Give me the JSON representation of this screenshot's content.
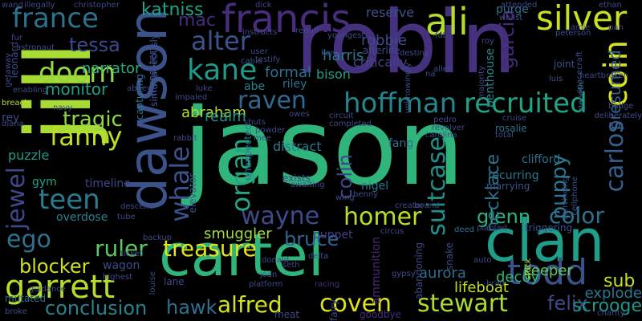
{
  "words": [
    {
      "text": "jason",
      "color": "#2fb47c"
    },
    {
      "text": "robin",
      "color": "#46317e"
    },
    {
      "text": "cartel",
      "color": "#2fb47c"
    },
    {
      "text": "jill",
      "color": "#a8db34"
    },
    {
      "text": "dawson",
      "color": "#3b528b"
    },
    {
      "text": "clan",
      "color": "#1f9e89"
    },
    {
      "text": "francis",
      "color": "#472d7b"
    },
    {
      "text": "ali",
      "color": "#b5de2b"
    },
    {
      "text": "silver",
      "color": "#c8e020"
    },
    {
      "text": "coin",
      "color": "#d8e219"
    },
    {
      "text": "carlos",
      "color": "#355f8d"
    },
    {
      "text": "recruited",
      "color": "#20a486"
    },
    {
      "text": "hoffman",
      "color": "#25858e"
    },
    {
      "text": "garrett",
      "color": "#b5de2b"
    },
    {
      "text": "todd",
      "color": "#3b528b"
    },
    {
      "text": "wayne",
      "color": "#3e4a89"
    },
    {
      "text": "homer",
      "color": "#b8de29"
    },
    {
      "text": "treasure",
      "color": "#e5e419"
    },
    {
      "text": "alfred",
      "color": "#d2e21b"
    },
    {
      "text": "stewart",
      "color": "#addc30"
    },
    {
      "text": "conclusion",
      "color": "#26828e"
    },
    {
      "text": "coven",
      "color": "#dde318"
    },
    {
      "text": "bruce",
      "color": "#31668e"
    },
    {
      "text": "hawk",
      "color": "#2c728e"
    },
    {
      "text": "raven",
      "color": "#31688e"
    },
    {
      "text": "alter",
      "color": "#3b528b"
    },
    {
      "text": "kane",
      "color": "#1f9a8a"
    },
    {
      "text": "doom",
      "color": "#95d840"
    },
    {
      "text": "france",
      "color": "#2c728e"
    },
    {
      "text": "fanny",
      "color": "#bddf26"
    },
    {
      "text": "jewel",
      "color": "#3f4889"
    },
    {
      "text": "whale",
      "color": "#3b528b"
    },
    {
      "text": "organ",
      "color": "#22a785"
    },
    {
      "text": "teen",
      "color": "#287c8e"
    },
    {
      "text": "ego",
      "color": "#2c728e"
    },
    {
      "text": "ruler",
      "color": "#5ec962"
    },
    {
      "text": "blocker",
      "color": "#d0e11c"
    },
    {
      "text": "suitcase",
      "color": "#21918c"
    },
    {
      "text": "colin",
      "color": "#3f4889"
    },
    {
      "text": "puppy",
      "color": "#2a788e"
    },
    {
      "text": "color",
      "color": "#2c728e"
    },
    {
      "text": "glenn",
      "color": "#2db27d"
    },
    {
      "text": "felix",
      "color": "#3e4a89"
    },
    {
      "text": "scrooge",
      "color": "#1f958b"
    },
    {
      "text": "sub",
      "color": "#c8e020"
    },
    {
      "text": "explode",
      "color": "#2a788e"
    },
    {
      "text": "katniss",
      "color": "#20a386"
    },
    {
      "text": "mac",
      "color": "#472c7a"
    },
    {
      "text": "garcia",
      "color": "#482979"
    },
    {
      "text": "presumed",
      "color": "#34618d"
    },
    {
      "text": "tessa",
      "color": "#3e4989"
    },
    {
      "text": "tragic",
      "color": "#8fd744"
    },
    {
      "text": "monitor",
      "color": "#1fa088"
    },
    {
      "text": "narrator",
      "color": "#29af7f"
    },
    {
      "text": "abraham",
      "color": "#b5de2b"
    },
    {
      "text": "smuggler",
      "color": "#a0da39"
    },
    {
      "text": "keeper",
      "color": "#5ec962"
    },
    {
      "text": "necklace",
      "color": "#2c728e"
    },
    {
      "text": "decoy",
      "color": "#31b57b"
    },
    {
      "text": "aurora",
      "color": "#2f6c8e"
    },
    {
      "text": "lifeboat",
      "color": "#c2df23"
    },
    {
      "text": "reserve",
      "color": "#3b528b"
    },
    {
      "text": "riley",
      "color": "#2c728e"
    },
    {
      "text": "formal",
      "color": "#2d708e"
    },
    {
      "text": "harris",
      "color": "#2a788e"
    },
    {
      "text": "critically",
      "color": "#404688"
    },
    {
      "text": "penthouse",
      "color": "#24868e"
    },
    {
      "text": "puzzle",
      "color": "#1f9a8a"
    },
    {
      "text": "gym",
      "color": "#20a386"
    },
    {
      "text": "timeline",
      "color": "#3f4889"
    },
    {
      "text": "overdose",
      "color": "#26818e"
    },
    {
      "text": "puppet",
      "color": "#433e85"
    },
    {
      "text": "realm",
      "color": "#21918c"
    },
    {
      "text": "distract",
      "color": "#2a788e"
    },
    {
      "text": "abe",
      "color": "#25848e"
    },
    {
      "text": "bison",
      "color": "#1f9e89"
    },
    {
      "text": "purge",
      "color": "#2c728e"
    },
    {
      "text": "fang",
      "color": "#2c728e"
    },
    {
      "text": "nigel",
      "color": "#2a788e"
    },
    {
      "text": "clifford",
      "color": "#2c728e"
    },
    {
      "text": "recurring",
      "color": "#2a788e"
    },
    {
      "text": "ammunition",
      "color": "#482878"
    },
    {
      "text": "monastery",
      "color": "#3e4a89"
    },
    {
      "text": "simultaneously",
      "color": "#3b528b"
    },
    {
      "text": "capturing",
      "color": "#2c728e"
    },
    {
      "text": "leonard",
      "color": "#3e4a89"
    },
    {
      "text": "elevator",
      "color": "#3b528b"
    },
    {
      "text": "unexpected",
      "color": "#2a788e"
    },
    {
      "text": "triggering",
      "color": "#3b528b"
    },
    {
      "text": "abandoning",
      "color": "#3e4a89"
    },
    {
      "text": "snake",
      "color": "#3e4a89"
    },
    {
      "text": "joint",
      "color": "#3b528b"
    },
    {
      "text": "luis",
      "color": "#3b528b"
    },
    {
      "text": "heartbroken",
      "color": "#3e4989"
    },
    {
      "text": "spacecraft",
      "color": "#3e4a89"
    },
    {
      "text": "genetic",
      "color": "#2c728e"
    },
    {
      "text": "rosalie",
      "color": "#2c728e"
    },
    {
      "text": "total",
      "color": "#3e4a89"
    },
    {
      "text": "marrying",
      "color": "#3b528b"
    },
    {
      "text": "convincing",
      "color": "#3b528b"
    },
    {
      "text": "cellphone",
      "color": "#3b528b"
    },
    {
      "text": "planted",
      "color": "#3e4a89"
    },
    {
      "text": "deed",
      "color": "#2c728e"
    },
    {
      "text": "bound",
      "color": "#3e4a89"
    },
    {
      "text": "creator",
      "color": "#3e4989"
    },
    {
      "text": "circus",
      "color": "#3e4a89"
    },
    {
      "text": "delta",
      "color": "#3b528b"
    },
    {
      "text": "wagon",
      "color": "#3e4a89"
    },
    {
      "text": "ticket",
      "color": "#3e4a89"
    },
    {
      "text": "tube",
      "color": "#3e4a89"
    },
    {
      "text": "descend",
      "color": "#3e4a89"
    },
    {
      "text": "mutated",
      "color": "#2c728e"
    },
    {
      "text": "guidance",
      "color": "#3e4a89"
    },
    {
      "text": "highest",
      "color": "#3e4a89"
    },
    {
      "text": "broke",
      "color": "#3e4a89"
    },
    {
      "text": "lane",
      "color": "#3e4a89"
    },
    {
      "text": "platform",
      "color": "#3e4a89"
    },
    {
      "text": "meat",
      "color": "#3e4a89"
    },
    {
      "text": "goodbye",
      "color": "#472d7b"
    },
    {
      "text": "fairy",
      "color": "#3e4a89"
    },
    {
      "text": "gypsy",
      "color": "#3e4a89"
    },
    {
      "text": "brad",
      "color": "#3e4a89"
    },
    {
      "text": "auto",
      "color": "#3e4a89"
    },
    {
      "text": "charity",
      "color": "#3e4a89"
    },
    {
      "text": "badge",
      "color": "#3e4a89"
    },
    {
      "text": "deliberately",
      "color": "#3e4a89"
    },
    {
      "text": "stuck",
      "color": "#b5de2b"
    },
    {
      "text": "robbie",
      "color": "#3e4a89"
    },
    {
      "text": "afterlife",
      "color": "#3e4a89"
    },
    {
      "text": "destiny",
      "color": "#3e4a89"
    },
    {
      "text": "ken",
      "color": "#3e4a89"
    },
    {
      "text": "youngest",
      "color": "#3e4a89"
    },
    {
      "text": "fat",
      "color": "#3e4a89"
    },
    {
      "text": "rebuff",
      "color": "#3e4a89"
    },
    {
      "text": "dick",
      "color": "#3e4a89"
    },
    {
      "text": "illegally",
      "color": "#3e4a89"
    },
    {
      "text": "christopher",
      "color": "#3e4a89"
    },
    {
      "text": "attended",
      "color": "#3e4a89"
    },
    {
      "text": "ethan",
      "color": "#3e4a89"
    },
    {
      "text": "whilst",
      "color": "#3e4a89"
    },
    {
      "text": "peterson",
      "color": "#3e4a89"
    },
    {
      "text": "roy",
      "color": "#3e4a89"
    },
    {
      "text": "allen",
      "color": "#3e4a89"
    },
    {
      "text": "fur",
      "color": "#3e4a89"
    },
    {
      "text": "astronaut",
      "color": "#3e4a89"
    },
    {
      "text": "getaway",
      "color": "#3e4a89"
    },
    {
      "text": "enabling",
      "color": "#3e4a89"
    },
    {
      "text": "breach",
      "color": "#b5de2b"
    },
    {
      "text": "rey",
      "color": "#3e4a89"
    },
    {
      "text": "diana",
      "color": "#3e4a89"
    },
    {
      "text": "navy",
      "color": "#3e4a89"
    },
    {
      "text": "luke",
      "color": "#3e4a89"
    },
    {
      "text": "abbey",
      "color": "#3e4a89"
    },
    {
      "text": "rabbit",
      "color": "#3e4a89"
    },
    {
      "text": "impaled",
      "color": "#3e4a89"
    },
    {
      "text": "owes",
      "color": "#3e4a89"
    },
    {
      "text": "completed",
      "color": "#3e4a89"
    },
    {
      "text": "pedro",
      "color": "#3e4a89"
    },
    {
      "text": "revolver",
      "color": "#3e4a89"
    },
    {
      "text": "cruise",
      "color": "#3e4a89"
    },
    {
      "text": "carolina",
      "color": "#3e4a89"
    },
    {
      "text": "powder",
      "color": "#3e4a89"
    },
    {
      "text": "exists",
      "color": "#3e4a89"
    },
    {
      "text": "awaiting",
      "color": "#3e4a89"
    },
    {
      "text": "wing",
      "color": "#3e4a89"
    },
    {
      "text": "benny",
      "color": "#3e4a89"
    },
    {
      "text": "testify",
      "color": "#3e4a89"
    },
    {
      "text": "user",
      "color": "#3e4a89"
    },
    {
      "text": "cable",
      "color": "#3e4a89"
    },
    {
      "text": "instructs",
      "color": "#3e4a89"
    },
    {
      "text": "unknowingly",
      "color": "#3e4a89"
    },
    {
      "text": "majority",
      "color": "#3e4a89"
    },
    {
      "text": "pan",
      "color": "#3e4a89"
    },
    {
      "text": "jamie",
      "color": "#3e4a89"
    },
    {
      "text": "wand",
      "color": "#3e4a89"
    },
    {
      "text": "backup",
      "color": "#3e4a89"
    },
    {
      "text": "louise",
      "color": "#3e4a89"
    },
    {
      "text": "seth",
      "color": "#3e4a89"
    },
    {
      "text": "donald",
      "color": "#3e4a89"
    },
    {
      "text": "joan",
      "color": "#3e4a89"
    },
    {
      "text": "racing",
      "color": "#472d7b"
    },
    {
      "text": "circuit",
      "color": "#3e4a89"
    },
    {
      "text": "shuts",
      "color": "#3e4a89"
    },
    {
      "text": "mee",
      "color": "#3e4a89"
    },
    {
      "text": "na",
      "color": "#3e4a89"
    }
  ]
}
